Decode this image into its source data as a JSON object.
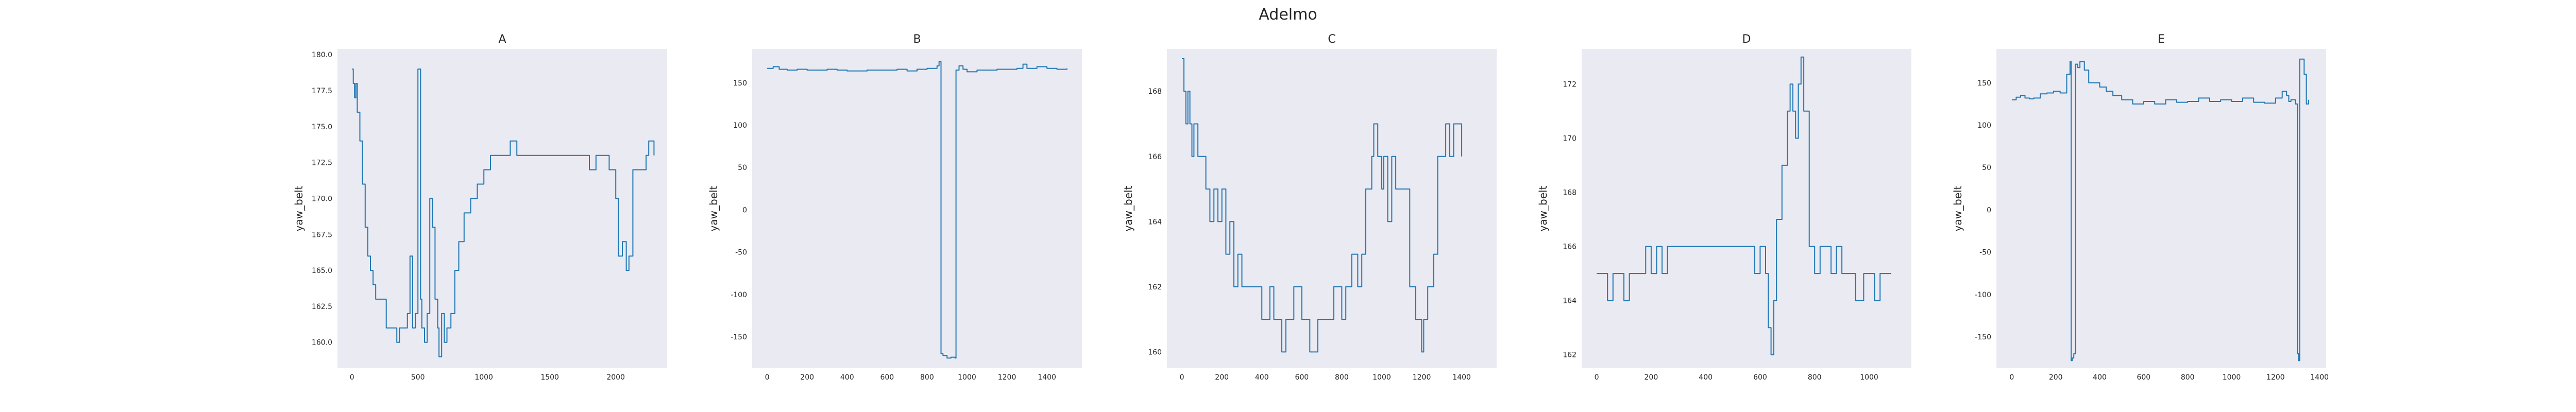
{
  "suptitle": "Adelmo",
  "colors": {
    "background": "#eaeaf2",
    "line": "#1f77b4",
    "text": "#262626"
  },
  "chart_data": [
    {
      "type": "line",
      "title": "A",
      "xlabel": "",
      "ylabel": "yaw_belt",
      "grid": false,
      "xlim": [
        -110,
        2390
      ],
      "ylim": [
        158.2,
        180.4
      ],
      "xticks": [
        0,
        500,
        1000,
        1500,
        2000
      ],
      "xtick_labels": [
        "0",
        "500",
        "1000",
        "1500",
        "2000"
      ],
      "yticks": [
        160.0,
        162.5,
        165.0,
        167.5,
        170.0,
        172.5,
        175.0,
        177.5,
        180.0
      ],
      "ytick_labels": [
        "160.0",
        "162.5",
        "165.0",
        "167.5",
        "170.0",
        "172.5",
        "175.0",
        "177.5",
        "180.0"
      ],
      "x": [
        0,
        10,
        20,
        30,
        40,
        60,
        80,
        100,
        120,
        140,
        160,
        180,
        200,
        230,
        260,
        300,
        340,
        360,
        380,
        400,
        420,
        440,
        460,
        480,
        500,
        510,
        520,
        530,
        550,
        570,
        590,
        610,
        630,
        650,
        660,
        680,
        700,
        720,
        750,
        780,
        810,
        850,
        900,
        950,
        1000,
        1050,
        1080,
        1100,
        1150,
        1200,
        1250,
        1300,
        1350,
        1400,
        1450,
        1500,
        1550,
        1600,
        1650,
        1700,
        1750,
        1800,
        1850,
        1900,
        1950,
        2000,
        2020,
        2050,
        2080,
        2100,
        2130,
        2150,
        2170,
        2200,
        2230,
        2250,
        2270,
        2290
      ],
      "y": [
        179,
        178,
        177,
        178,
        176,
        174,
        171,
        168,
        166,
        165,
        164,
        163,
        163,
        163,
        161,
        161,
        160,
        161,
        161,
        161,
        162,
        166,
        161,
        162,
        179,
        179,
        163,
        161,
        160,
        162,
        170,
        168,
        163,
        161,
        159,
        162,
        160,
        161,
        162,
        165,
        167,
        169,
        170,
        171,
        172,
        173,
        173,
        173,
        173,
        174,
        173,
        173,
        173,
        173,
        173,
        173,
        173,
        173,
        173,
        173,
        173,
        172,
        173,
        173,
        172,
        170,
        166,
        167,
        165,
        166,
        172,
        172,
        172,
        172,
        173,
        174,
        174,
        173
      ]
    },
    {
      "type": "line",
      "title": "B",
      "xlabel": "",
      "ylabel": "yaw_belt",
      "grid": false,
      "xlim": [
        -75,
        1575
      ],
      "ylim": [
        -187,
        190
      ],
      "xticks": [
        0,
        200,
        400,
        600,
        800,
        1000,
        1200,
        1400
      ],
      "xtick_labels": [
        "0",
        "200",
        "400",
        "600",
        "800",
        "1000",
        "1200",
        "1400"
      ],
      "yticks": [
        -150,
        -100,
        -50,
        0,
        50,
        100,
        150
      ],
      "ytick_labels": [
        "-150",
        "-100",
        "-50",
        "0",
        "50",
        "100",
        "150"
      ],
      "x": [
        0,
        30,
        60,
        100,
        150,
        200,
        250,
        300,
        350,
        400,
        450,
        500,
        550,
        600,
        650,
        700,
        750,
        800,
        830,
        850,
        860,
        870,
        880,
        900,
        920,
        940,
        945,
        960,
        980,
        1000,
        1050,
        1100,
        1150,
        1200,
        1250,
        1280,
        1300,
        1350,
        1400,
        1450,
        1500
      ],
      "y": [
        167,
        169,
        166,
        165,
        166,
        165,
        165,
        166,
        165,
        164,
        164,
        165,
        165,
        165,
        166,
        164,
        166,
        167,
        167,
        170,
        175,
        -170,
        -172,
        -175,
        -174,
        -175,
        165,
        170,
        166,
        163,
        165,
        165,
        166,
        166,
        167,
        172,
        167,
        169,
        167,
        166,
        167
      ]
    },
    {
      "type": "line",
      "title": "C",
      "xlabel": "",
      "ylabel": "yaw_belt",
      "grid": false,
      "xlim": [
        -75,
        1575
      ],
      "ylim": [
        159.5,
        169.3
      ],
      "xticks": [
        0,
        200,
        400,
        600,
        800,
        1000,
        1200,
        1400
      ],
      "xtick_labels": [
        "0",
        "200",
        "400",
        "600",
        "800",
        "1000",
        "1200",
        "1400"
      ],
      "yticks": [
        160,
        162,
        164,
        166,
        168
      ],
      "ytick_labels": [
        "160",
        "162",
        "164",
        "166",
        "168"
      ],
      "x": [
        0,
        10,
        20,
        30,
        40,
        50,
        60,
        80,
        100,
        120,
        140,
        160,
        180,
        200,
        220,
        240,
        260,
        280,
        300,
        330,
        360,
        400,
        420,
        440,
        460,
        500,
        520,
        560,
        600,
        640,
        680,
        720,
        760,
        800,
        820,
        850,
        880,
        900,
        920,
        950,
        960,
        980,
        1000,
        1010,
        1030,
        1050,
        1070,
        1090,
        1110,
        1140,
        1170,
        1200,
        1210,
        1230,
        1260,
        1280,
        1300,
        1320,
        1340,
        1360,
        1380,
        1400
      ],
      "y": [
        169,
        168,
        167,
        168,
        167,
        166,
        167,
        166,
        166,
        165,
        164,
        165,
        164,
        165,
        163,
        164,
        162,
        163,
        162,
        162,
        162,
        161,
        161,
        162,
        161,
        160,
        161,
        162,
        161,
        160,
        161,
        161,
        162,
        161,
        162,
        163,
        162,
        163,
        165,
        166,
        167,
        166,
        165,
        166,
        164,
        166,
        165,
        165,
        165,
        162,
        161,
        160,
        161,
        162,
        163,
        166,
        166,
        167,
        166,
        167,
        167,
        166
      ]
    },
    {
      "type": "line",
      "title": "D",
      "xlabel": "",
      "ylabel": "yaw_belt",
      "grid": false,
      "xlim": [
        -55,
        1155
      ],
      "ylim": [
        161.5,
        173.3
      ],
      "xticks": [
        0,
        200,
        400,
        600,
        800,
        1000
      ],
      "xtick_labels": [
        "0",
        "200",
        "400",
        "600",
        "800",
        "1000"
      ],
      "yticks": [
        162,
        164,
        166,
        168,
        170,
        172
      ],
      "ytick_labels": [
        "162",
        "164",
        "166",
        "168",
        "170",
        "172"
      ],
      "x": [
        0,
        20,
        40,
        60,
        80,
        100,
        120,
        140,
        160,
        180,
        200,
        220,
        240,
        260,
        280,
        300,
        350,
        400,
        450,
        500,
        530,
        560,
        580,
        600,
        620,
        630,
        640,
        650,
        660,
        680,
        700,
        710,
        720,
        730,
        740,
        750,
        760,
        780,
        800,
        820,
        840,
        860,
        880,
        900,
        920,
        950,
        980,
        1000,
        1020,
        1040,
        1060,
        1080
      ],
      "y": [
        165,
        165,
        164,
        165,
        165,
        164,
        165,
        165,
        165,
        166,
        165,
        166,
        165,
        166,
        166,
        166,
        166,
        166,
        166,
        166,
        166,
        166,
        165,
        166,
        165,
        163,
        162,
        164,
        167,
        169,
        171,
        172,
        171,
        170,
        172,
        173,
        171,
        166,
        165,
        166,
        166,
        165,
        166,
        165,
        165,
        164,
        165,
        165,
        164,
        165,
        165,
        165
      ]
    },
    {
      "type": "line",
      "title": "E",
      "xlabel": "",
      "ylabel": "yaw_belt",
      "grid": false,
      "xlim": [
        -70,
        1430
      ],
      "ylim": [
        -187,
        190
      ],
      "xticks": [
        0,
        200,
        400,
        600,
        800,
        1000,
        1200,
        1400
      ],
      "xtick_labels": [
        "0",
        "200",
        "400",
        "600",
        "800",
        "1000",
        "1200",
        "1400"
      ],
      "yticks": [
        -150,
        -100,
        -50,
        0,
        50,
        100,
        150
      ],
      "ytick_labels": [
        "-150",
        "-100",
        "-50",
        "0",
        "50",
        "100",
        "150"
      ],
      "x": [
        0,
        20,
        40,
        60,
        80,
        100,
        130,
        160,
        190,
        220,
        250,
        265,
        270,
        275,
        282,
        290,
        300,
        310,
        330,
        350,
        380,
        400,
        430,
        460,
        500,
        550,
        600,
        650,
        700,
        750,
        800,
        850,
        900,
        950,
        1000,
        1050,
        1100,
        1150,
        1200,
        1230,
        1250,
        1260,
        1270,
        1290,
        1300,
        1305,
        1310,
        1330,
        1340,
        1350
      ],
      "y": [
        130,
        133,
        135,
        132,
        131,
        132,
        137,
        138,
        140,
        138,
        160,
        175,
        -178,
        -175,
        -170,
        172,
        168,
        175,
        165,
        150,
        150,
        145,
        140,
        135,
        130,
        125,
        128,
        125,
        130,
        127,
        128,
        132,
        128,
        130,
        128,
        132,
        127,
        126,
        132,
        140,
        135,
        128,
        130,
        125,
        -170,
        -178,
        178,
        160,
        125,
        130
      ]
    }
  ]
}
